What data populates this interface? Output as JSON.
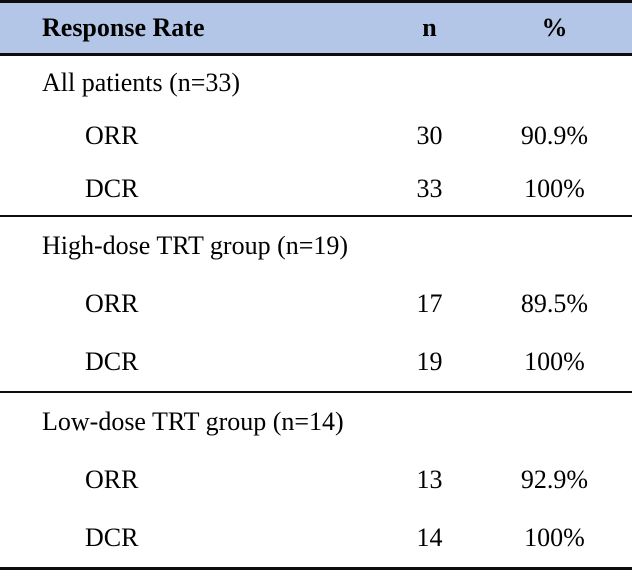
{
  "table": {
    "header": {
      "col1": "Response Rate",
      "col2": "n",
      "col3": "%"
    },
    "sections": [
      {
        "title": "All patients (n=33)",
        "rows": [
          {
            "label": "ORR",
            "n": "30",
            "pct": "90.9%"
          },
          {
            "label": "DCR",
            "n": "33",
            "pct": "100%"
          }
        ]
      },
      {
        "title": "High-dose TRT group (n=19)",
        "rows": [
          {
            "label": "ORR",
            "n": "17",
            "pct": "89.5%"
          },
          {
            "label": "DCR",
            "n": "19",
            "pct": "100%"
          }
        ]
      },
      {
        "title": "Low-dose TRT group (n=14)",
        "rows": [
          {
            "label": "ORR",
            "n": "13",
            "pct": "92.9%"
          },
          {
            "label": "DCR",
            "n": "14",
            "pct": "100%"
          }
        ]
      }
    ],
    "colors": {
      "header_bg": "#b4c6e7",
      "border": "#0d0d0d",
      "text": "#000000"
    }
  },
  "chart_data": {
    "type": "table",
    "title": "Response Rate",
    "columns": [
      "Response Rate",
      "n",
      "%"
    ],
    "groups": [
      {
        "group": "All patients (n=33)",
        "rows": [
          {
            "measure": "ORR",
            "n": 30,
            "percent": "90.9%"
          },
          {
            "measure": "DCR",
            "n": 33,
            "percent": "100%"
          }
        ]
      },
      {
        "group": "High-dose TRT group (n=19)",
        "rows": [
          {
            "measure": "ORR",
            "n": 17,
            "percent": "89.5%"
          },
          {
            "measure": "DCR",
            "n": 19,
            "percent": "100%"
          }
        ]
      },
      {
        "group": "Low-dose TRT group (n=14)",
        "rows": [
          {
            "measure": "ORR",
            "n": 13,
            "percent": "92.9%"
          },
          {
            "measure": "DCR",
            "n": 14,
            "percent": "100%"
          }
        ]
      }
    ],
    "layout_hints": {
      "header_background": "#b4c6e7",
      "rules": "horizontal only",
      "n_column_align": "center",
      "percent_column_align": "center"
    }
  }
}
